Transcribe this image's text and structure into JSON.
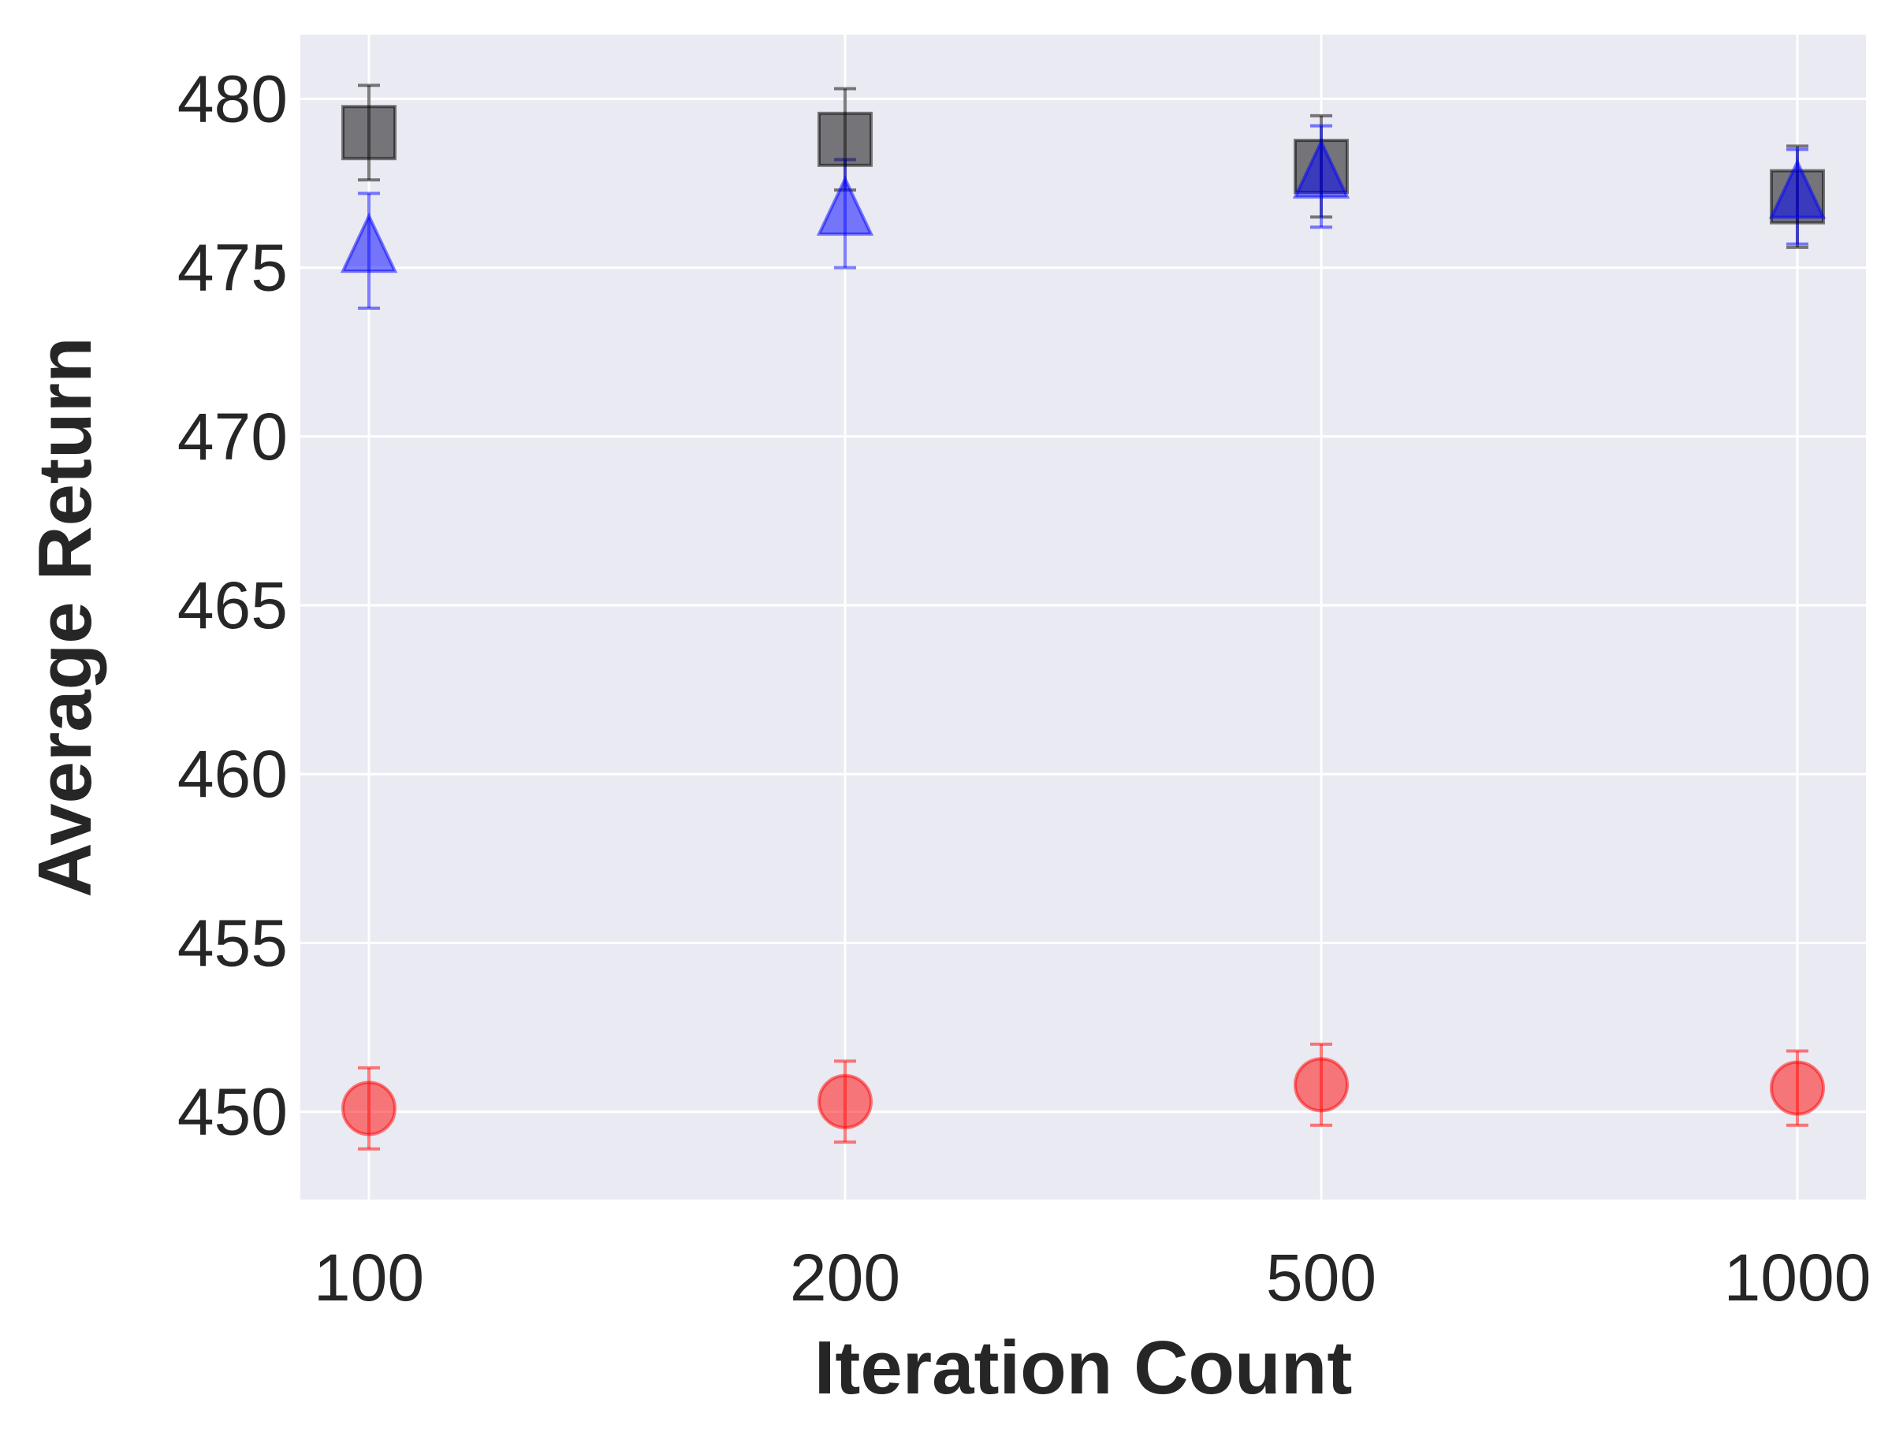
{
  "chart_data": {
    "type": "scatter",
    "title": "",
    "xlabel": "Iteration Count",
    "ylabel": "Average Return",
    "categories": [
      "100",
      "200",
      "500",
      "1000"
    ],
    "y_ticks": [
      450,
      455,
      460,
      465,
      470,
      475,
      480
    ],
    "ylim": [
      447.4,
      481.9
    ],
    "grid": true,
    "legend": "none",
    "background": "#eaeaf2",
    "series": [
      {
        "marker": "square",
        "color": "#000000",
        "values": [
          479.0,
          478.8,
          478.0,
          477.1
        ],
        "errors": [
          1.4,
          1.5,
          1.5,
          1.5
        ]
      },
      {
        "marker": "triangle",
        "color": "#0000ff",
        "values": [
          475.5,
          476.6,
          477.7,
          477.1
        ],
        "errors": [
          1.7,
          1.6,
          1.5,
          1.4
        ]
      },
      {
        "marker": "circle",
        "color": "#ff0000",
        "values": [
          450.1,
          450.3,
          450.8,
          450.7
        ],
        "errors": [
          1.2,
          1.2,
          1.2,
          1.1
        ]
      }
    ]
  }
}
